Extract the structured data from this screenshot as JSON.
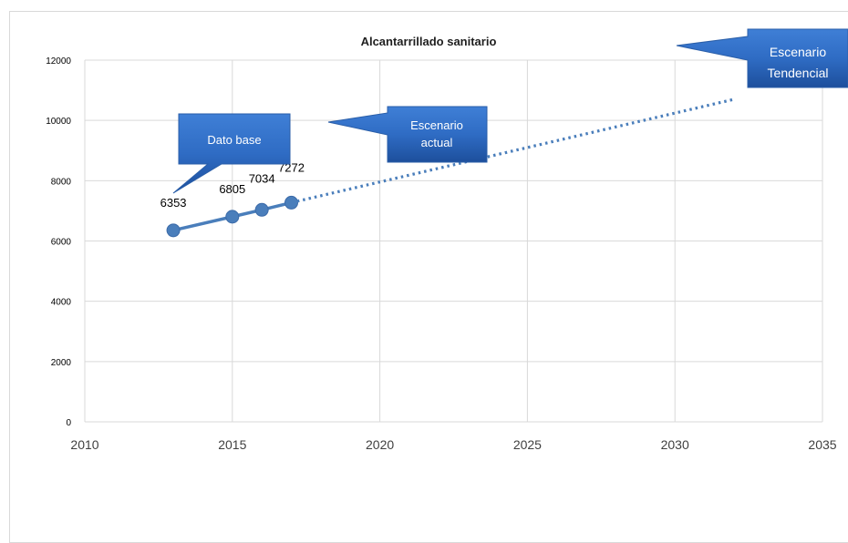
{
  "chart_data": {
    "type": "line",
    "title": "Alcantarrillado sanitario",
    "xlabel": "",
    "ylabel": "",
    "xlim": [
      2010,
      2035
    ],
    "ylim": [
      0,
      12000
    ],
    "x_ticks": [
      2010,
      2015,
      2020,
      2025,
      2030,
      2035
    ],
    "y_ticks": [
      0,
      2000,
      4000,
      6000,
      8000,
      10000,
      12000
    ],
    "grid": true,
    "series": [
      {
        "style": "solid-with-markers",
        "color": "#4a7ebb",
        "x": [
          2013,
          2015,
          2016,
          2017
        ],
        "y": [
          6353,
          6805,
          7034,
          7272
        ],
        "labels": [
          "6353",
          "6805",
          "7034",
          "7272"
        ]
      },
      {
        "style": "dotted",
        "color": "#4a7ebb",
        "x": [
          2017,
          2032
        ],
        "y": [
          7272,
          10700
        ]
      }
    ],
    "annotations": [
      {
        "text": "Dato base"
      },
      {
        "text_lines": [
          "Escenario",
          "actual"
        ]
      },
      {
        "text_lines": [
          "Escenario",
          "Tendencial"
        ]
      }
    ]
  }
}
